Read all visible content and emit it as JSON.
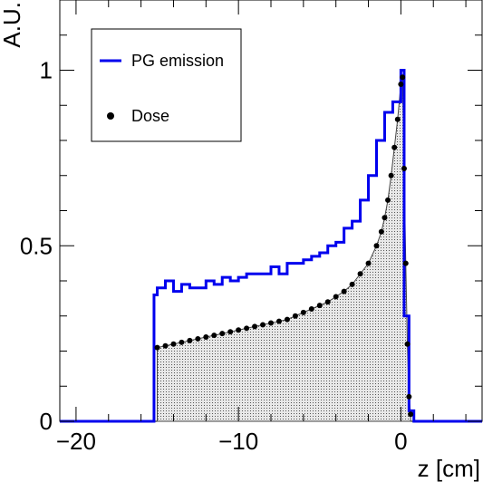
{
  "chart_data": {
    "type": "line",
    "xlabel": "z [cm]",
    "ylabel": "A.U.",
    "xlim": [
      -21,
      5
    ],
    "ylim": [
      0,
      1.2
    ],
    "x_ticks": [
      -20,
      -10,
      0
    ],
    "x_tick_labels": [
      "−20",
      "−10",
      "0"
    ],
    "y_ticks": [
      0,
      0.5,
      1
    ],
    "y_tick_labels": [
      "0",
      "0.5",
      "1"
    ],
    "grid": false,
    "legend": {
      "position": "top-left",
      "entries": [
        "PG emission",
        "Dose"
      ]
    },
    "series": [
      {
        "name": "PG emission",
        "style": "step",
        "color": "#0000ee",
        "x": [
          -21,
          -16.2,
          -15.2,
          -15.0,
          -14.5,
          -14.0,
          -13.5,
          -13.0,
          -12.5,
          -12.0,
          -11.5,
          -11.0,
          -10.5,
          -10.0,
          -9.5,
          -9.0,
          -8.5,
          -8.0,
          -7.5,
          -7.0,
          -6.5,
          -6.0,
          -5.5,
          -5.0,
          -4.5,
          -4.0,
          -3.5,
          -3.0,
          -2.5,
          -2.0,
          -1.5,
          -1.0,
          -0.5,
          0.0,
          0.2,
          0.5,
          0.8,
          5
        ],
        "y": [
          0.0,
          0.0,
          0.36,
          0.38,
          0.4,
          0.37,
          0.39,
          0.38,
          0.38,
          0.4,
          0.39,
          0.41,
          0.4,
          0.41,
          0.42,
          0.42,
          0.42,
          0.44,
          0.42,
          0.45,
          0.45,
          0.46,
          0.47,
          0.48,
          0.5,
          0.51,
          0.55,
          0.57,
          0.63,
          0.7,
          0.8,
          0.88,
          0.91,
          1.0,
          0.3,
          0.03,
          0.0,
          0.0
        ]
      },
      {
        "name": "Dose",
        "style": "markers+filled",
        "color": "#000000",
        "x": [
          -15.0,
          -14.5,
          -14.0,
          -13.5,
          -13.0,
          -12.5,
          -12.0,
          -11.5,
          -11.0,
          -10.5,
          -10.0,
          -9.5,
          -9.0,
          -8.5,
          -8.0,
          -7.5,
          -7.0,
          -6.5,
          -6.0,
          -5.5,
          -5.0,
          -4.5,
          -4.0,
          -3.5,
          -3.0,
          -2.5,
          -2.0,
          -1.5,
          -1.2,
          -1.0,
          -0.8,
          -0.6,
          -0.4,
          -0.2,
          0.0,
          0.1,
          0.2,
          0.3,
          0.4,
          0.5,
          0.6
        ],
        "y": [
          0.21,
          0.215,
          0.22,
          0.225,
          0.23,
          0.235,
          0.24,
          0.245,
          0.25,
          0.255,
          0.26,
          0.265,
          0.27,
          0.275,
          0.28,
          0.285,
          0.29,
          0.3,
          0.31,
          0.32,
          0.33,
          0.34,
          0.355,
          0.37,
          0.39,
          0.42,
          0.45,
          0.5,
          0.54,
          0.58,
          0.63,
          0.7,
          0.78,
          0.86,
          0.96,
          0.98,
          0.72,
          0.45,
          0.22,
          0.07,
          0.02
        ]
      }
    ]
  }
}
